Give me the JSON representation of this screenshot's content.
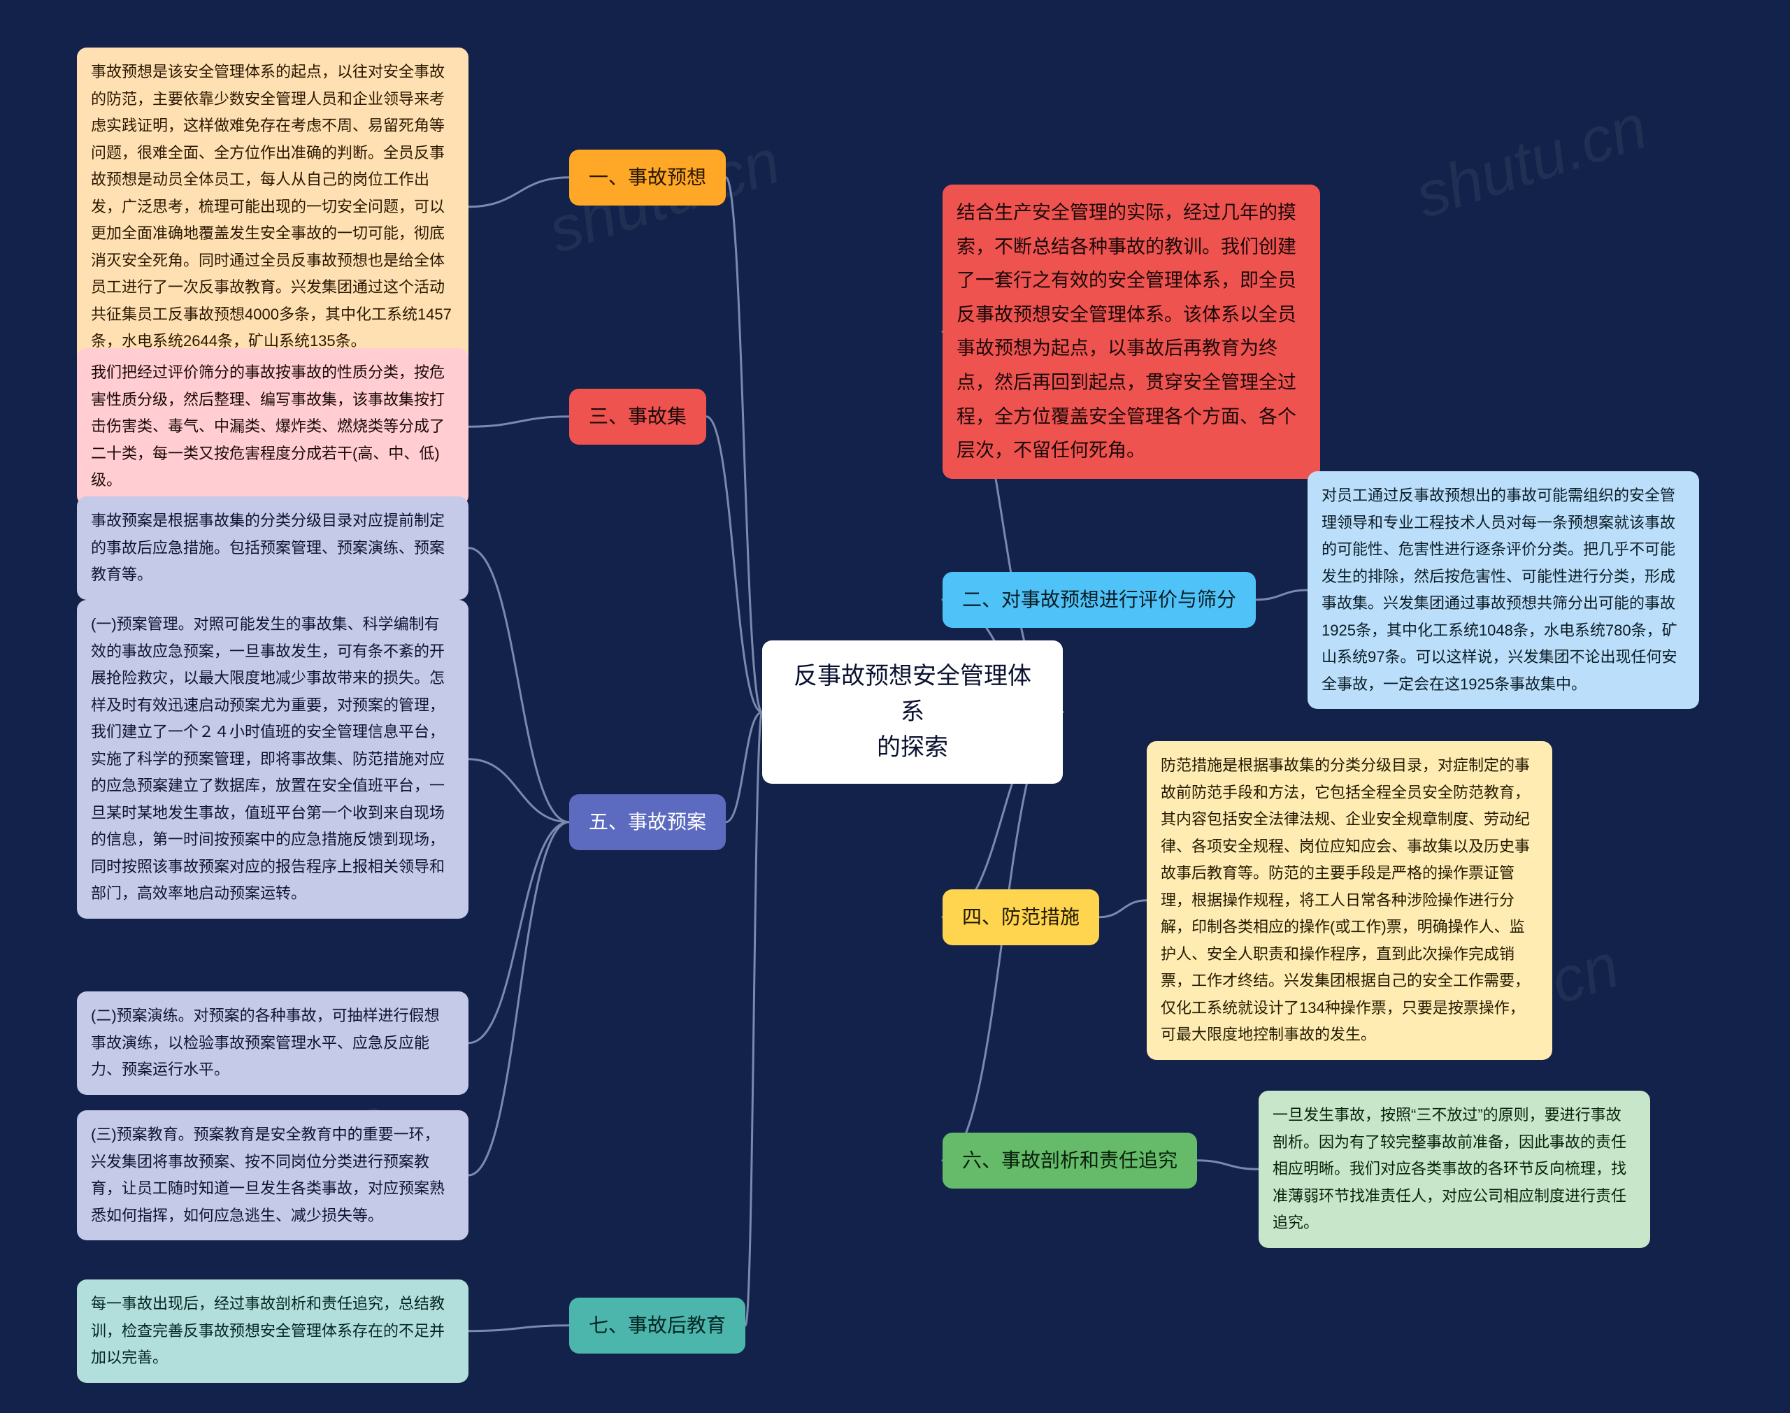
{
  "background_color": "#13224a",
  "center": {
    "text_line1": "反事故预想安全管理体系",
    "text_line2": "的探索",
    "bg": "#ffffff",
    "fg": "#0b1230"
  },
  "right": {
    "intro": {
      "bg": "#ef5350",
      "fg": "#1a0808",
      "text": "结合生产安全管理的实际，经过几年的摸索，不断总结各种事故的教训。我们创建了一套行之有效的安全管理体系，即全员反事故预想安全管理体系。该体系以全员事故预想为起点，以事故后再教育为终点，然后再回到起点，贯穿安全管理全过程，全方位覆盖安全管理各个方面、各个层次，不留任何死角。"
    },
    "n2": {
      "label": "二、对事故预想进行评价与筛分",
      "bg": "#4fc3f7",
      "fg": "#0b1d26",
      "leaf": {
        "bg": "#bbdefb",
        "fg": "#0b1d26",
        "text": "对员工通过反事故预想出的事故可能需组织的安全管理领导和专业工程技术人员对每一条预想案就该事故的可能性、危害性进行逐条评价分类。把几乎不可能发生的排除，然后按危害性、可能性进行分类，形成事故集。兴发集团通过事故预想共筛分出可能的事故1925条，其中化工系统1048条，水电系统780条，矿山系统97条。可以这样说，兴发集团不论出现任何安全事故，一定会在这1925条事故集中。"
      }
    },
    "n4": {
      "label": "四、防范措施",
      "bg": "#ffd54f",
      "fg": "#231a00",
      "leaf": {
        "bg": "#ffecb3",
        "fg": "#231a00",
        "text": "防范措施是根据事故集的分类分级目录，对症制定的事故前防范手段和方法，它包括全程全员安全防范教育，其内容包括安全法律法规、企业安全规章制度、劳动纪律、各项安全规程、岗位应知应会、事故集以及历史事故事后教育等。防范的主要手段是严格的操作票证管理，根据操作规程，将工人日常各种涉险操作进行分解，印制各类相应的操作(或工作)票，明确操作人、监护人、安全人职责和操作程序，直到此次操作完成销票，工作才终结。兴发集团根据自己的安全工作需要，仅化工系统就设计了134种操作票，只要是按票操作，可最大限度地控制事故的发生。"
      }
    },
    "n6": {
      "label": "六、事故剖析和责任追究",
      "bg": "#66bb6a",
      "fg": "#08220c",
      "leaf": {
        "bg": "#c8e6c9",
        "fg": "#08220c",
        "text": "一旦发生事故，按照“三不放过”的原则，要进行事故剖析。因为有了较完整事故前准备，因此事故的责任相应明晰。我们对应各类事故的各环节反向梳理，找准薄弱环节找准责任人，对应公司相应制度进行责任追究。"
      }
    }
  },
  "left": {
    "n1": {
      "label": "一、事故预想",
      "bg": "#ffa726",
      "fg": "#2a1800",
      "leaf": {
        "bg": "#ffe0b2",
        "fg": "#2a1800",
        "text": "事故预想是该安全管理体系的起点，以往对安全事故的防范，主要依靠少数安全管理人员和企业领导来考虑实践证明，这样做难免存在考虑不周、易留死角等问题，很难全面、全方位作出准确的判断。全员反事故预想是动员全体员工，每人从自己的岗位工作出发，广泛思考，梳理可能出现的一切安全问题，可以更加全面准确地覆盖发生安全事故的一切可能，彻底消灭安全死角。同时通过全员反事故预想也是给全体员工进行了一次反事故教育。兴发集团通过这个活动共征集员工反事故预想4000多条，其中化工系统1457条，水电系统2644条，矿山系统135条。"
      }
    },
    "n3": {
      "label": "三、事故集",
      "bg": "#ef5350",
      "fg": "#1a0808",
      "leaf": {
        "bg": "#ffcdd2",
        "fg": "#1a0808",
        "text": "我们把经过评价筛分的事故按事故的性质分类，按危害性质分级，然后整理、编写事故集，该事故集按打击伤害类、毒气、中漏类、爆炸类、燃烧类等分成了二十类，每一类又按危害程度分成若干(高、中、低)级。"
      }
    },
    "n5": {
      "label": "五、事故预案",
      "bg": "#5c6bc0",
      "fg": "#ffffff",
      "leaves": [
        {
          "bg": "#c5cae9",
          "fg": "#101434",
          "text": "事故预案是根据事故集的分类分级目录对应提前制定的事故后应急措施。包括预案管理、预案演练、预案教育等。"
        },
        {
          "bg": "#c5cae9",
          "fg": "#101434",
          "text": "(一)预案管理。对照可能发生的事故集、科学编制有效的事故应急预案，一旦事故发生，可有条不紊的开展抢险救灾，以最大限度地减少事故带来的损失。怎样及时有效迅速启动预案尤为重要，对预案的管理，我们建立了一个２４小时值班的安全管理信息平台，实施了科学的预案管理，即将事故集、防范措施对应的应急预案建立了数据库，放置在安全值班平台，一旦某时某地发生事故，值班平台第一个收到来自现场的信息，第一时间按预案中的应急措施反馈到现场，同时按照该事故预案对应的报告程序上报相关领导和部门，高效率地启动预案运转。"
        },
        {
          "bg": "#c5cae9",
          "fg": "#101434",
          "text": "(二)预案演练。对预案的各种事故，可抽样进行假想事故演练，以检验事故预案管理水平、应急反应能力、预案运行水平。"
        },
        {
          "bg": "#c5cae9",
          "fg": "#101434",
          "text": "(三)预案教育。预案教育是安全教育中的重要一环，兴发集团将事故预案、按不同岗位分类进行预案教育，让员工随时知道一旦发生各类事故，对应预案熟悉如何指挥，如何应急逃生、减少损失等。"
        }
      ]
    },
    "n7": {
      "label": "七、事故后教育",
      "bg": "#4db6ac",
      "fg": "#042523",
      "leaf": {
        "bg": "#b2dfdb",
        "fg": "#042523",
        "text": "每一事故出现后，经过事故剖析和责任追究，总结教训，检查完善反事故预想安全管理体系存在的不足并加以完善。"
      }
    }
  },
  "connector_color": "#7b88b0",
  "watermark": "shutu.cn"
}
